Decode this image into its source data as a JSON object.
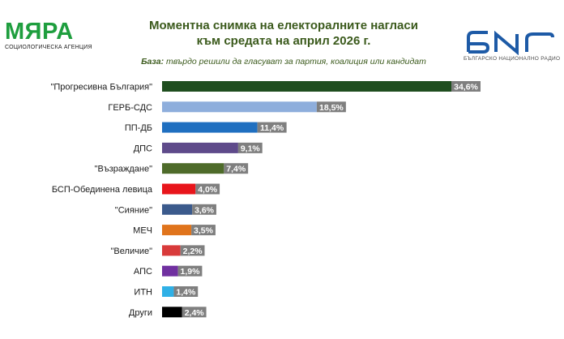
{
  "header": {
    "left_logo_name": "МЯРА",
    "left_logo_sub": "СОЦИОЛОГИЧЕСКА АГЕНЦИЯ",
    "right_logo_sub": "БЪЛГАРСКО НАЦИОНАЛНО РАДИО",
    "base_label": "База:",
    "base_text": " твърдо решили да гласуват за партия, коалиция или кандидат"
  },
  "colors": {
    "title": "#3b5a1c",
    "label_box": "#7f7f7f",
    "logo_green": "#1e9e3e",
    "logo_blue": "#1d5aa6"
  },
  "chart_data": {
    "type": "bar",
    "orientation": "horizontal",
    "title": "Моментна снимка на електоралните нагласи към средата на април 2026 г.",
    "title_lines": [
      "Моментна снимка на електоралните нагласи",
      "към средата на април 2026 г."
    ],
    "categories": [
      "\"Прогресивна България\"",
      "ГЕРБ-СДС",
      "ПП-ДБ",
      "ДПС",
      "\"Възраждане\"",
      "БСП-Обединена левица",
      "\"Сияние\"",
      "МЕЧ",
      "\"Величие\"",
      "АПС",
      "ИТН",
      "Други"
    ],
    "values": [
      34.6,
      18.5,
      11.4,
      9.1,
      7.4,
      4.0,
      3.6,
      3.5,
      2.2,
      1.9,
      1.4,
      2.4
    ],
    "value_labels": [
      "34,6%",
      "18,5%",
      "11,4%",
      "9,1%",
      "7,4%",
      "4,0%",
      "3,6%",
      "3,5%",
      "2,2%",
      "1,9%",
      "1,4%",
      "2,4%"
    ],
    "bar_colors": [
      "#1f4e1f",
      "#8eaedc",
      "#1f6fc0",
      "#5e4a8a",
      "#4e6b2a",
      "#e8151b",
      "#3b5a8c",
      "#e0741c",
      "#d83a3a",
      "#7030a0",
      "#2fb0e6",
      "#000000"
    ],
    "xlim": [
      0,
      34.6
    ],
    "grid": false,
    "legend": "none"
  }
}
